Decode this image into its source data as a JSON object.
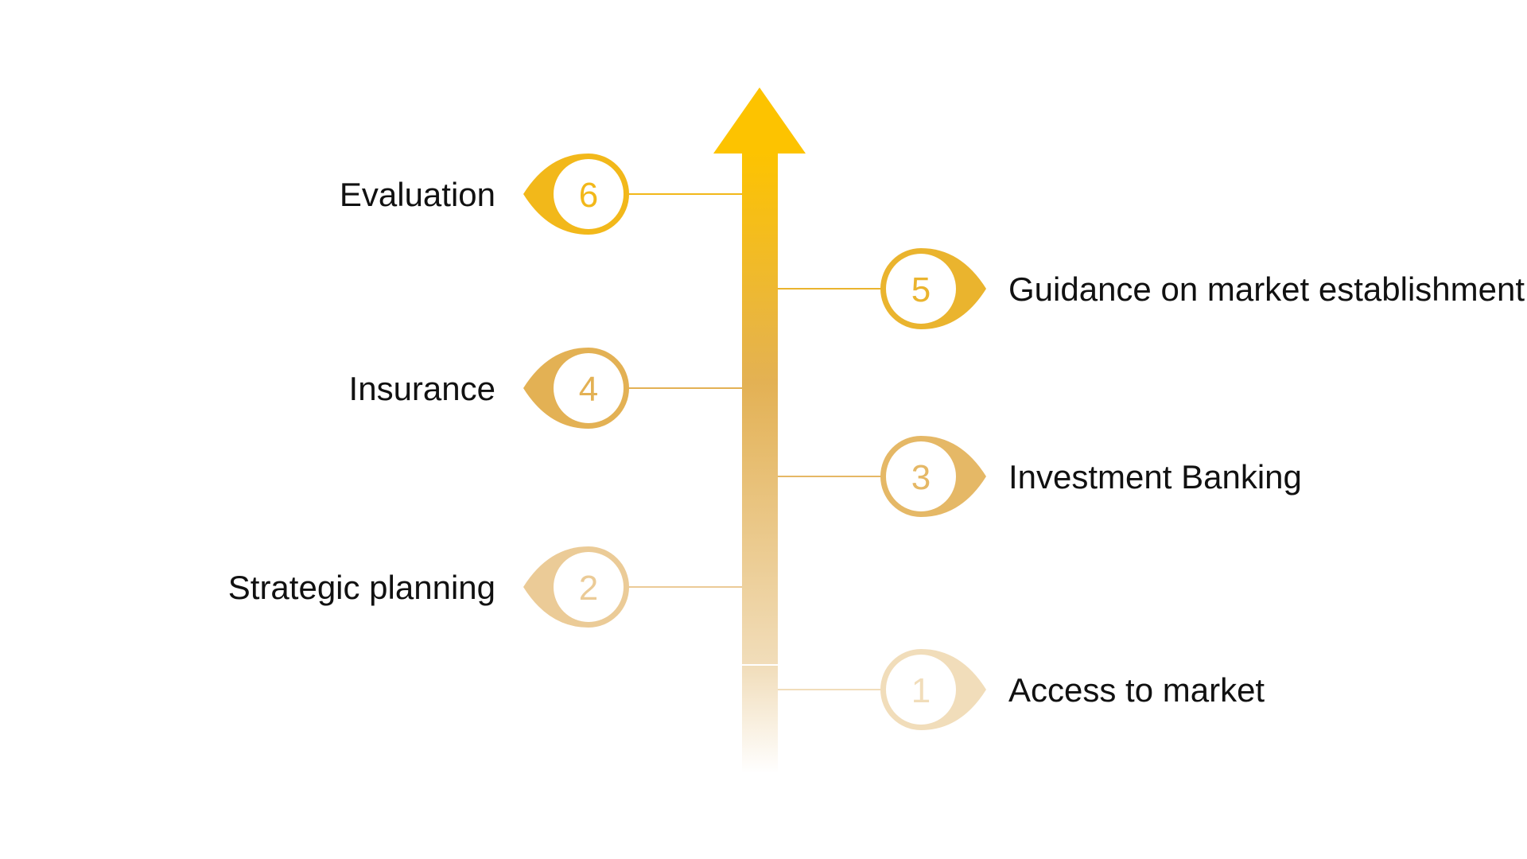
{
  "title": "",
  "colors": {
    "arrow_top": "#FDC300",
    "arrow_mid": "#E3B154",
    "arrow_bottom": "#F1DDBA",
    "label_text": "#111111",
    "background": "#FFFFFF"
  },
  "steps": [
    {
      "number": "1",
      "label": "Access to market",
      "side": "right",
      "color": "#F1DDBA"
    },
    {
      "number": "2",
      "label": "Strategic planning",
      "side": "left",
      "color": "#EBCB97"
    },
    {
      "number": "3",
      "label": "Investment Banking",
      "side": "right",
      "color": "#E5B866"
    },
    {
      "number": "4",
      "label": "Insurance",
      "side": "left",
      "color": "#E3B154"
    },
    {
      "number": "5",
      "label": "Guidance on market establishment",
      "side": "right",
      "color": "#EAB42E"
    },
    {
      "number": "6",
      "label": "Evaluation",
      "side": "left",
      "color": "#F2B81A"
    }
  ]
}
